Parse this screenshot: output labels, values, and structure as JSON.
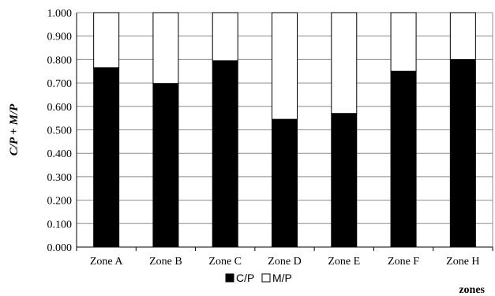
{
  "chart_data": {
    "type": "bar",
    "stacked": true,
    "categories": [
      "Zone A",
      "Zone B",
      "Zone C",
      "Zone D",
      "Zone E",
      "Zone F",
      "Zone H"
    ],
    "series": [
      {
        "name": "C/P",
        "values": [
          0.765,
          0.698,
          0.795,
          0.545,
          0.57,
          0.75,
          0.8
        ],
        "color": "#000000"
      },
      {
        "name": "M/P",
        "values": [
          0.235,
          0.302,
          0.205,
          0.455,
          0.43,
          0.25,
          0.2
        ],
        "color": "#ffffff"
      }
    ],
    "yticks": [
      "0.000",
      "0.100",
      "0.200",
      "0.300",
      "0.400",
      "0.500",
      "0.600",
      "0.700",
      "0.800",
      "0.900",
      "1.000"
    ],
    "ylim": [
      0,
      1
    ],
    "ylabel": "C/P + M/P",
    "xlabel": "zones",
    "grid": true,
    "legend": "bottom-center"
  }
}
